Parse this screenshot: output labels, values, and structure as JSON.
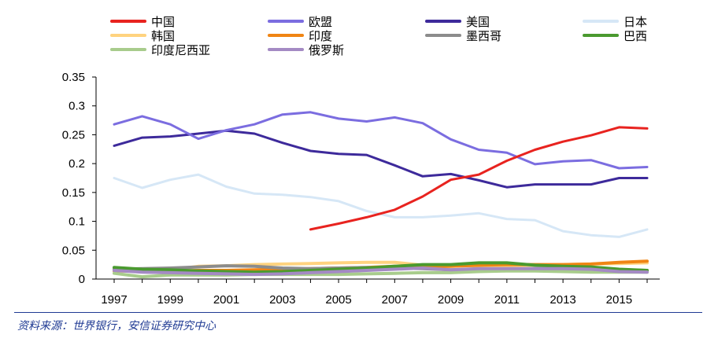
{
  "chart_data": {
    "type": "line",
    "title": "",
    "xlabel": "",
    "ylabel": "",
    "x": [
      1997,
      1998,
      1999,
      2000,
      2001,
      2002,
      2003,
      2004,
      2005,
      2006,
      2007,
      2008,
      2009,
      2010,
      2011,
      2012,
      2013,
      2014,
      2015,
      2016
    ],
    "xticks": [
      1997,
      1999,
      2001,
      2003,
      2005,
      2007,
      2009,
      2011,
      2013,
      2015
    ],
    "xtick_labels": [
      "1997",
      "1999",
      "2001",
      "2003",
      "2005",
      "2007",
      "2009",
      "2011",
      "2013",
      "2015"
    ],
    "yticks": [
      0,
      0.05,
      0.1,
      0.15,
      0.2,
      0.25,
      0.3,
      0.35
    ],
    "ytick_labels": [
      "0",
      "0.05",
      "0.1",
      "0.15",
      "0.2",
      "0.25",
      "0.3",
      "0.35"
    ],
    "ylim": [
      0,
      0.35
    ],
    "grid": false,
    "legend_position": "top",
    "series": [
      {
        "name": "中国",
        "color": "#e8231f",
        "values": [
          null,
          null,
          null,
          null,
          null,
          null,
          null,
          0.086,
          0.096,
          0.107,
          0.12,
          0.143,
          0.172,
          0.181,
          0.205,
          0.224,
          0.238,
          0.249,
          0.263,
          0.261
        ]
      },
      {
        "name": "欧盟",
        "color": "#7b6de0",
        "values": [
          0.268,
          0.282,
          0.268,
          0.243,
          0.258,
          0.268,
          0.285,
          0.289,
          0.278,
          0.273,
          0.28,
          0.27,
          0.242,
          0.224,
          0.219,
          0.199,
          0.204,
          0.206,
          0.192,
          0.194
        ]
      },
      {
        "name": "美国",
        "color": "#3d2a9b",
        "values": [
          0.231,
          0.245,
          0.247,
          0.252,
          0.257,
          0.252,
          0.236,
          0.222,
          0.217,
          0.215,
          0.197,
          0.178,
          0.182,
          0.171,
          0.159,
          0.164,
          0.164,
          0.164,
          0.175,
          0.175
        ]
      },
      {
        "name": "日本",
        "color": "#d6e7f6",
        "values": [
          0.175,
          0.158,
          0.172,
          0.181,
          0.16,
          0.148,
          0.146,
          0.142,
          0.135,
          0.118,
          0.107,
          0.107,
          0.11,
          0.114,
          0.104,
          0.102,
          0.083,
          0.076,
          0.073,
          0.086
        ]
      },
      {
        "name": "韩国",
        "color": "#ffd37f",
        "values": [
          0.018,
          0.014,
          0.016,
          0.022,
          0.023,
          0.025,
          0.026,
          0.027,
          0.028,
          0.029,
          0.029,
          0.024,
          0.023,
          0.023,
          0.023,
          0.024,
          0.025,
          0.026,
          0.027,
          0.028
        ]
      },
      {
        "name": "印度",
        "color": "#f08514",
        "values": [
          0.014,
          0.014,
          0.014,
          0.015,
          0.015,
          0.016,
          0.017,
          0.018,
          0.019,
          0.02,
          0.022,
          0.021,
          0.022,
          0.024,
          0.025,
          0.025,
          0.025,
          0.026,
          0.029,
          0.031
        ]
      },
      {
        "name": "墨西哥",
        "color": "#8c8c8c",
        "values": [
          0.017,
          0.018,
          0.019,
          0.021,
          0.023,
          0.022,
          0.019,
          0.018,
          0.019,
          0.02,
          0.019,
          0.018,
          0.016,
          0.017,
          0.017,
          0.018,
          0.018,
          0.017,
          0.016,
          0.015
        ]
      },
      {
        "name": "巴西",
        "color": "#4a9a2f",
        "values": [
          0.02,
          0.017,
          0.016,
          0.014,
          0.013,
          0.012,
          0.013,
          0.015,
          0.017,
          0.019,
          0.022,
          0.025,
          0.025,
          0.028,
          0.028,
          0.024,
          0.022,
          0.021,
          0.017,
          0.015
        ]
      },
      {
        "name": "印度尼西亚",
        "color": "#a8cc8c",
        "values": [
          0.01,
          0.004,
          0.007,
          0.007,
          0.007,
          0.008,
          0.008,
          0.008,
          0.008,
          0.009,
          0.01,
          0.011,
          0.011,
          0.013,
          0.014,
          0.014,
          0.013,
          0.012,
          0.012,
          0.012
        ]
      },
      {
        "name": "俄罗斯",
        "color": "#a48ac4",
        "values": [
          0.015,
          0.012,
          0.011,
          0.01,
          0.009,
          0.008,
          0.009,
          0.011,
          0.013,
          0.015,
          0.017,
          0.019,
          0.016,
          0.018,
          0.018,
          0.018,
          0.018,
          0.017,
          0.013,
          0.012
        ]
      }
    ]
  },
  "source_note": "资料来源：世界银行，安信证券研究中心"
}
